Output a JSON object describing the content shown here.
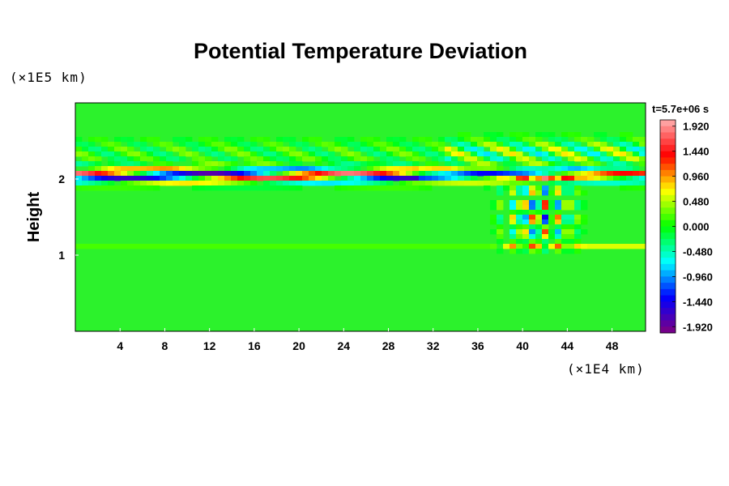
{
  "chart_data": {
    "type": "heatmap",
    "title": "Potential Temperature Deviation",
    "ylabel": "Height",
    "y_unit": "(×1E5 km)",
    "x_unit": "(×1E4 km)",
    "time_label": "t=5.7e+06 s",
    "xlim": [
      0,
      51
    ],
    "ylim": [
      0,
      3
    ],
    "x_ticks": [
      4,
      8,
      12,
      16,
      20,
      24,
      28,
      32,
      36,
      40,
      44,
      48
    ],
    "y_ticks": [
      1,
      2
    ],
    "colorbar": {
      "min": -2.04,
      "max": 2.04,
      "ticks": [
        "1.920",
        "1.440",
        "0.960",
        "0.480",
        "0.000",
        "-0.480",
        "-0.960",
        "-1.440",
        "-1.920"
      ],
      "tick_values": [
        1.92,
        1.44,
        0.96,
        0.48,
        0.0,
        -0.48,
        -0.96,
        -1.44,
        -1.92
      ],
      "levels": 34,
      "colors": [
        "#800080",
        "#0000ff",
        "#00ffff",
        "#00ff00",
        "#ffff00",
        "#ff0000",
        "#ffb0b0"
      ]
    },
    "features": [
      {
        "name": "main stratified layer",
        "x_range": [
          0,
          51
        ],
        "y_center": 2.05,
        "amplitude": 1.92
      },
      {
        "name": "lower thin layer",
        "x_range": [
          0,
          51
        ],
        "y_center": 1.1,
        "amplitude": 0.4
      },
      {
        "name": "local disturbance",
        "x_range": [
          38,
          45
        ],
        "y_range": [
          1.1,
          2.0
        ],
        "amplitude": 1.44
      }
    ]
  }
}
